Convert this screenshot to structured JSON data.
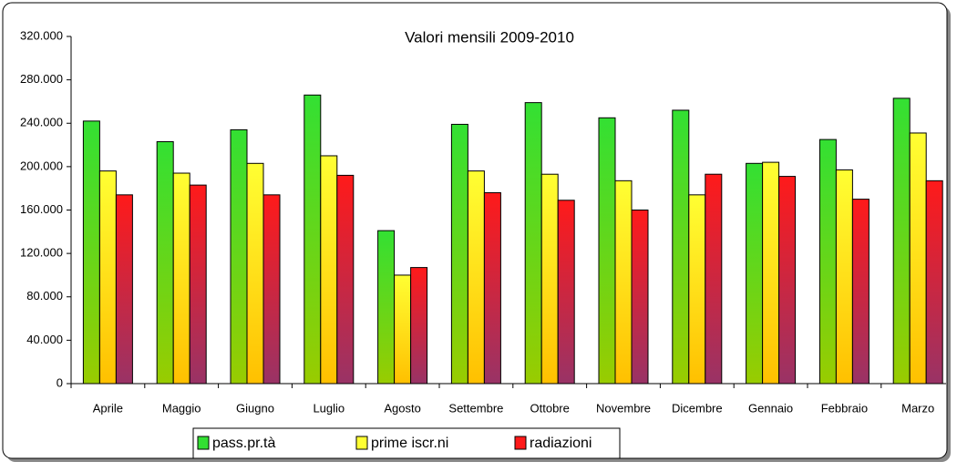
{
  "chart_data": {
    "type": "bar",
    "title": "Valori mensili 2009-2010",
    "categories": [
      "Aprile",
      "Maggio",
      "Giugno",
      "Luglio",
      "Agosto",
      "Settembre",
      "Ottobre",
      "Novembre",
      "Dicembre",
      "Gennaio",
      "Febbraio",
      "Marzo"
    ],
    "series": [
      {
        "name": "pass.pr.tà",
        "color": "#33e033",
        "values": [
          242000,
          223000,
          234000,
          266000,
          141000,
          239000,
          259000,
          245000,
          252000,
          203000,
          225000,
          263000
        ]
      },
      {
        "name": "prime iscr.ni",
        "color": "#ffff33",
        "values": [
          196000,
          194000,
          203000,
          210000,
          100000,
          196000,
          193000,
          187000,
          174000,
          204000,
          197000,
          231000
        ]
      },
      {
        "name": "radiazioni",
        "color": "#ff1a1a",
        "values": [
          174000,
          183000,
          174000,
          192000,
          107000,
          176000,
          169000,
          160000,
          193000,
          191000,
          170000,
          187000
        ]
      }
    ],
    "ylim": [
      0,
      320000
    ],
    "yticks": [
      0,
      {
        "value": 40000,
        "label": "40.000"
      },
      {
        "value": 80000,
        "label": "80.000"
      },
      {
        "value": 120000,
        "label": "120.000"
      },
      {
        "value": 160000,
        "label": "160.000"
      },
      {
        "value": 200000,
        "label": "200.000"
      },
      {
        "value": 240000,
        "label": "240.000"
      },
      {
        "value": 280000,
        "label": "280.000"
      },
      {
        "value": 320000,
        "label": "320.000"
      }
    ],
    "grid": false,
    "legend": "bottom"
  }
}
